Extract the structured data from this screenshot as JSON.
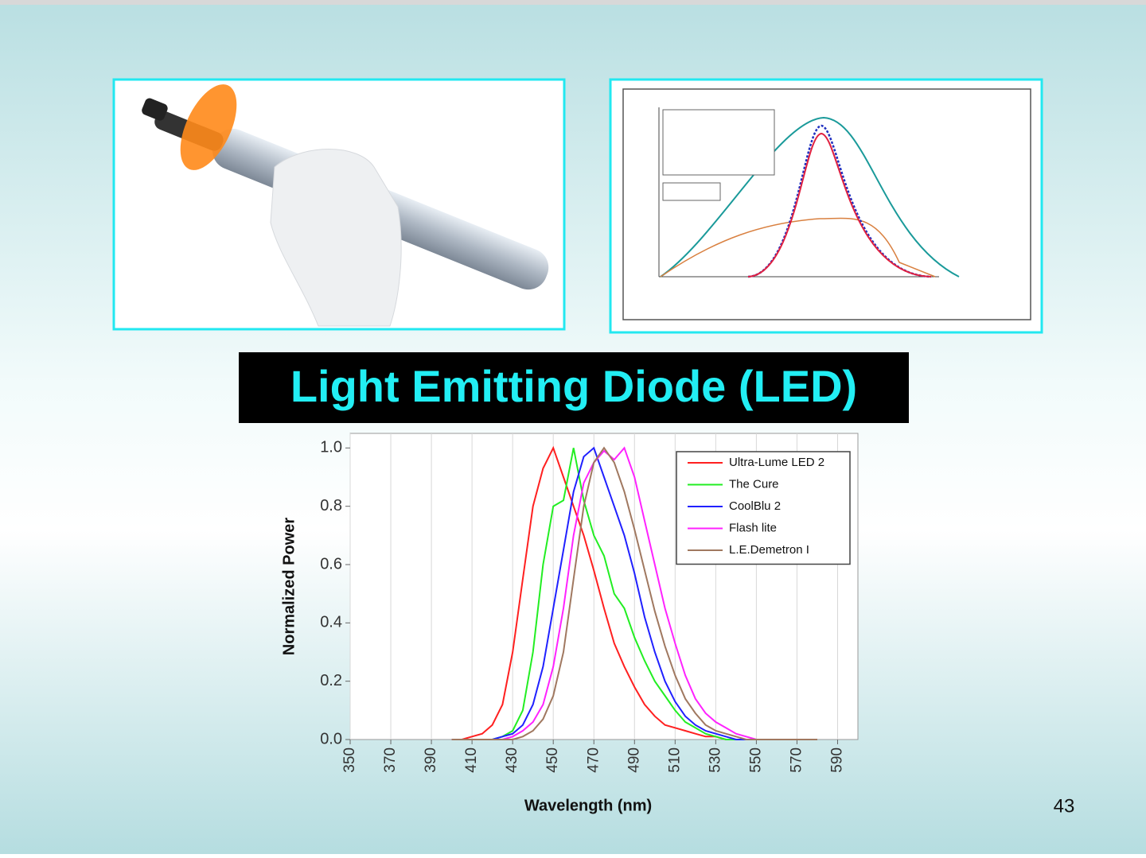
{
  "slide": {
    "title": "Light Emitting Diode (LED)",
    "slide_number": "43"
  },
  "chart_data": {
    "type": "line",
    "x_label": "Wavelength (nm)",
    "y_label": "Normalized Power",
    "x": [
      400,
      405,
      410,
      415,
      420,
      425,
      430,
      435,
      440,
      445,
      450,
      455,
      460,
      465,
      470,
      475,
      480,
      485,
      490,
      495,
      500,
      505,
      510,
      515,
      520,
      525,
      530,
      535,
      540,
      545,
      550,
      555,
      560,
      565,
      570,
      575,
      580
    ],
    "series": [
      {
        "name": "Ultra-Lume LED 2",
        "color": "#ff2020",
        "values": [
          0,
          0,
          0.01,
          0.02,
          0.05,
          0.12,
          0.3,
          0.55,
          0.8,
          0.93,
          1,
          0.9,
          0.8,
          0.7,
          0.58,
          0.45,
          0.33,
          0.25,
          0.18,
          0.12,
          0.08,
          0.05,
          0.04,
          0.03,
          0.02,
          0.01,
          0.01,
          0,
          0,
          0,
          0,
          0,
          0,
          0,
          0,
          0,
          0
        ]
      },
      {
        "name": "The Cure",
        "color": "#22ee22",
        "values": [
          0,
          0,
          0,
          0,
          0,
          0.01,
          0.03,
          0.1,
          0.3,
          0.6,
          0.8,
          0.82,
          1,
          0.82,
          0.7,
          0.63,
          0.5,
          0.45,
          0.35,
          0.27,
          0.2,
          0.15,
          0.1,
          0.06,
          0.04,
          0.02,
          0.01,
          0,
          0,
          0,
          0,
          0,
          0,
          0,
          0,
          0,
          0
        ]
      },
      {
        "name": "CoolBlu 2",
        "color": "#2020ff",
        "values": [
          0,
          0,
          0,
          0,
          0,
          0.01,
          0.02,
          0.05,
          0.12,
          0.25,
          0.45,
          0.65,
          0.85,
          0.97,
          1,
          0.9,
          0.8,
          0.7,
          0.57,
          0.42,
          0.3,
          0.2,
          0.13,
          0.08,
          0.05,
          0.03,
          0.02,
          0.01,
          0,
          0,
          0,
          0,
          0,
          0,
          0,
          0,
          0
        ]
      },
      {
        "name": "Flash lite",
        "color": "#ff22ff",
        "values": [
          0,
          0,
          0,
          0,
          0,
          0,
          0.01,
          0.03,
          0.06,
          0.12,
          0.25,
          0.45,
          0.7,
          0.88,
          0.95,
          0.99,
          0.96,
          1,
          0.9,
          0.75,
          0.6,
          0.45,
          0.33,
          0.22,
          0.14,
          0.09,
          0.06,
          0.04,
          0.02,
          0.01,
          0,
          0,
          0,
          0,
          0,
          0,
          0
        ]
      },
      {
        "name": "L.E.Demetron I",
        "color": "#a07860",
        "values": [
          0,
          0,
          0,
          0,
          0,
          0,
          0,
          0.01,
          0.03,
          0.07,
          0.15,
          0.3,
          0.55,
          0.8,
          0.95,
          1,
          0.95,
          0.85,
          0.72,
          0.58,
          0.44,
          0.32,
          0.22,
          0.14,
          0.09,
          0.05,
          0.03,
          0.02,
          0.01,
          0,
          0,
          0,
          0,
          0,
          0,
          0,
          0
        ]
      }
    ],
    "xlim": [
      350,
      600
    ],
    "xticks": [
      350,
      370,
      390,
      410,
      430,
      450,
      470,
      490,
      510,
      530,
      550,
      570,
      590
    ],
    "ylim": [
      0,
      1.05
    ],
    "yticks": [
      {
        "value": 0,
        "label": "0.0"
      },
      0.2,
      0.4,
      0.6,
      0.8,
      {
        "value": 1,
        "label": "1.0"
      }
    ],
    "grid": true,
    "legend": "upper right"
  }
}
